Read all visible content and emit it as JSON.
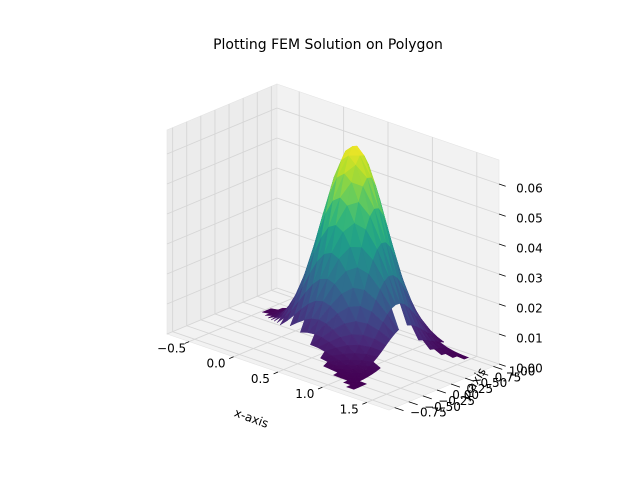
{
  "chart_data": {
    "type": "surface",
    "title": "Plotting FEM Solution on Polygon",
    "xlabel": "x-axis",
    "ylabel": "y-axis",
    "zlabel": "",
    "xlim": [
      -0.75,
      1.75
    ],
    "ylim": [
      -0.85,
      1.1
    ],
    "zlim": [
      0,
      0.068
    ],
    "x_ticks": [
      -0.5,
      0.0,
      0.5,
      1.0,
      1.5
    ],
    "x_tick_labels": [
      "−0.5",
      "0.0",
      "0.5",
      "1.0",
      "1.5"
    ],
    "y_ticks": [
      -0.75,
      -0.5,
      -0.25,
      0.0,
      0.25,
      0.5,
      0.75,
      1.0
    ],
    "y_tick_labels": [
      "−0.75",
      "−0.50",
      "−0.25",
      "0.00",
      "0.25",
      "0.50",
      "0.75",
      "1.00"
    ],
    "z_ticks": [
      0.0,
      0.01,
      0.02,
      0.03,
      0.04,
      0.05,
      0.06
    ],
    "z_tick_labels": [
      "0.00",
      "0.01",
      "0.02",
      "0.03",
      "0.04",
      "0.05",
      "0.06"
    ],
    "colormap": "viridis",
    "colormap_stops": [
      "#440154",
      "#482878",
      "#3e4989",
      "#31688e",
      "#26828e",
      "#1f9e89",
      "#35b779",
      "#6ece58",
      "#b5de2b",
      "#fde725"
    ],
    "peak": {
      "x": 0.5,
      "y": 0.5,
      "z": 0.065
    },
    "domain_polygon": [
      [
        -0.5,
        0.5
      ],
      [
        0.0,
        0.0
      ],
      [
        1.0,
        -0.5
      ],
      [
        1.25,
        -0.75
      ],
      [
        1.0,
        0.5
      ],
      [
        1.5,
        1.0
      ],
      [
        0.5,
        1.1
      ],
      [
        0.0,
        1.0
      ]
    ],
    "grid": true,
    "pane_color": "#f2f2f2",
    "grid_color": "#d6d6d6"
  }
}
